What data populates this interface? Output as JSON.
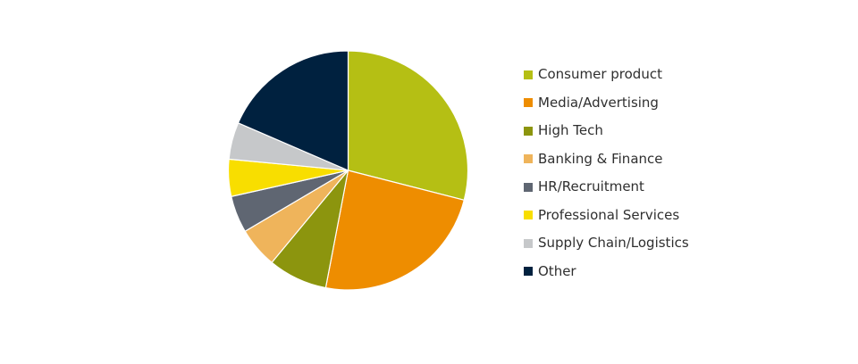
{
  "chart_data": {
    "type": "pie",
    "legend_position": "right",
    "start_angle_deg": 0,
    "direction": "clockwise",
    "slices": [
      {
        "label": "Consumer product",
        "value": 29,
        "color": "#b5bf14"
      },
      {
        "label": "Media/Advertising",
        "value": 24,
        "color": "#ee8d00"
      },
      {
        "label": "High Tech",
        "value": 8,
        "color": "#8c950e"
      },
      {
        "label": "Banking & Finance",
        "value": 5.5,
        "color": "#efb45b"
      },
      {
        "label": "HR/Recruitment",
        "value": 5,
        "color": "#5f6672"
      },
      {
        "label": "Professional Services",
        "value": 5,
        "color": "#f8de00"
      },
      {
        "label": "Supply Chain/Logistics",
        "value": 5,
        "color": "#c6c8ca"
      },
      {
        "label": "Other",
        "value": 18.5,
        "color": "#00213f"
      }
    ]
  }
}
